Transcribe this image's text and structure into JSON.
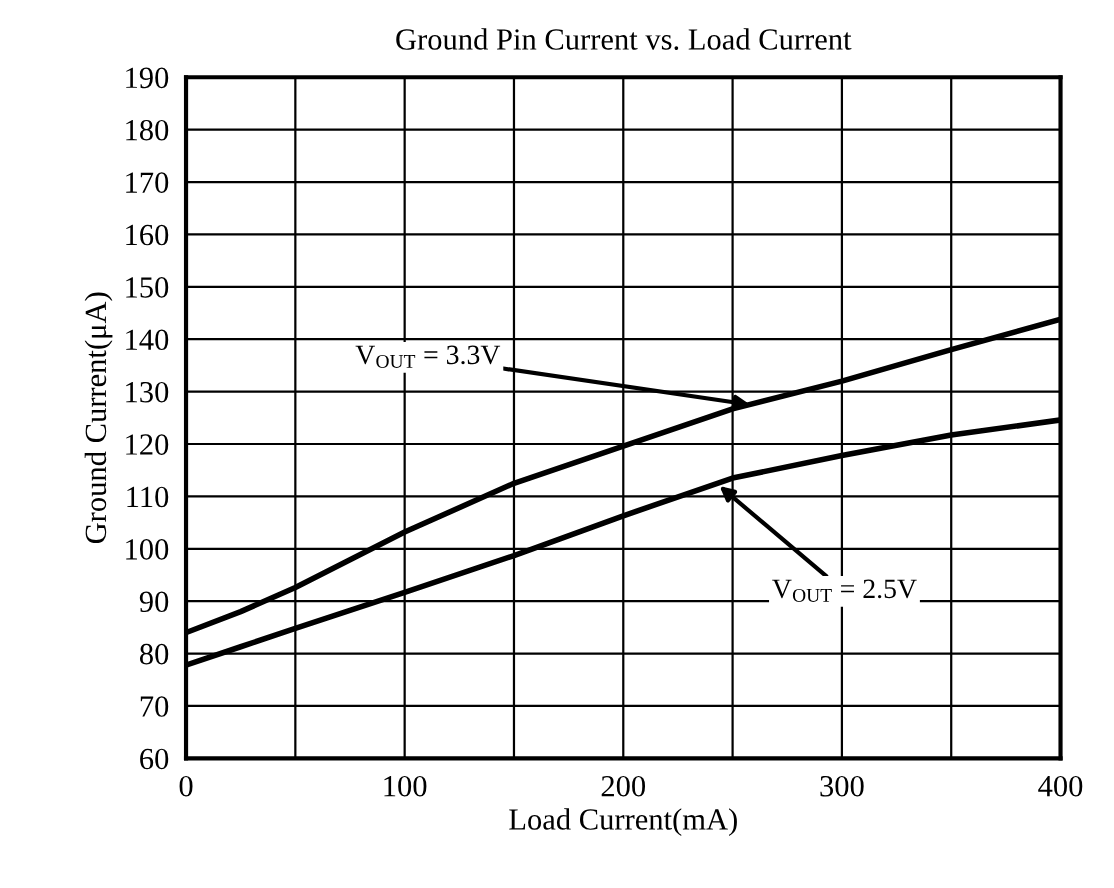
{
  "chart_data": {
    "type": "line",
    "title": "Ground Pin Current vs. Load Current",
    "xlabel": "Load Current(mA)",
    "ylabel": "Ground Current(μA)",
    "x": [
      0,
      25,
      50,
      100,
      150,
      200,
      250,
      300,
      350,
      400
    ],
    "series": [
      {
        "color": "#000000",
        "values": [
          84,
          88,
          92.6,
          103.2,
          112.5,
          119.6,
          126.7,
          132,
          138,
          143.8
        ]
      },
      {
        "color": "#000000",
        "values": [
          77.8,
          81.3,
          84.8,
          91.7,
          98.7,
          106.3,
          113.5,
          117.8,
          121.7,
          124.6
        ]
      }
    ],
    "annotations": [
      {
        "text": "V$_{OUT}$ = 3.3V",
        "x": 258,
        "y": 127.5
      },
      {
        "text": "V$_{OUT}$ = 2.5V",
        "x": 244,
        "y": 112
      }
    ],
    "xlim": [
      0,
      400
    ],
    "ylim": [
      60,
      190
    ],
    "xticks": [
      0,
      {
        "value": 50,
        "label": null
      },
      100,
      {
        "value": 150,
        "label": null
      },
      200,
      {
        "value": 250,
        "label": null
      },
      300,
      {
        "value": 350,
        "label": null
      },
      400
    ],
    "yticks": [
      60,
      70,
      80,
      90,
      100,
      110,
      120,
      130,
      140,
      150,
      160,
      170,
      180,
      190
    ],
    "grid": true,
    "legend": false,
    "marker": "none",
    "line_style": "solid"
  }
}
